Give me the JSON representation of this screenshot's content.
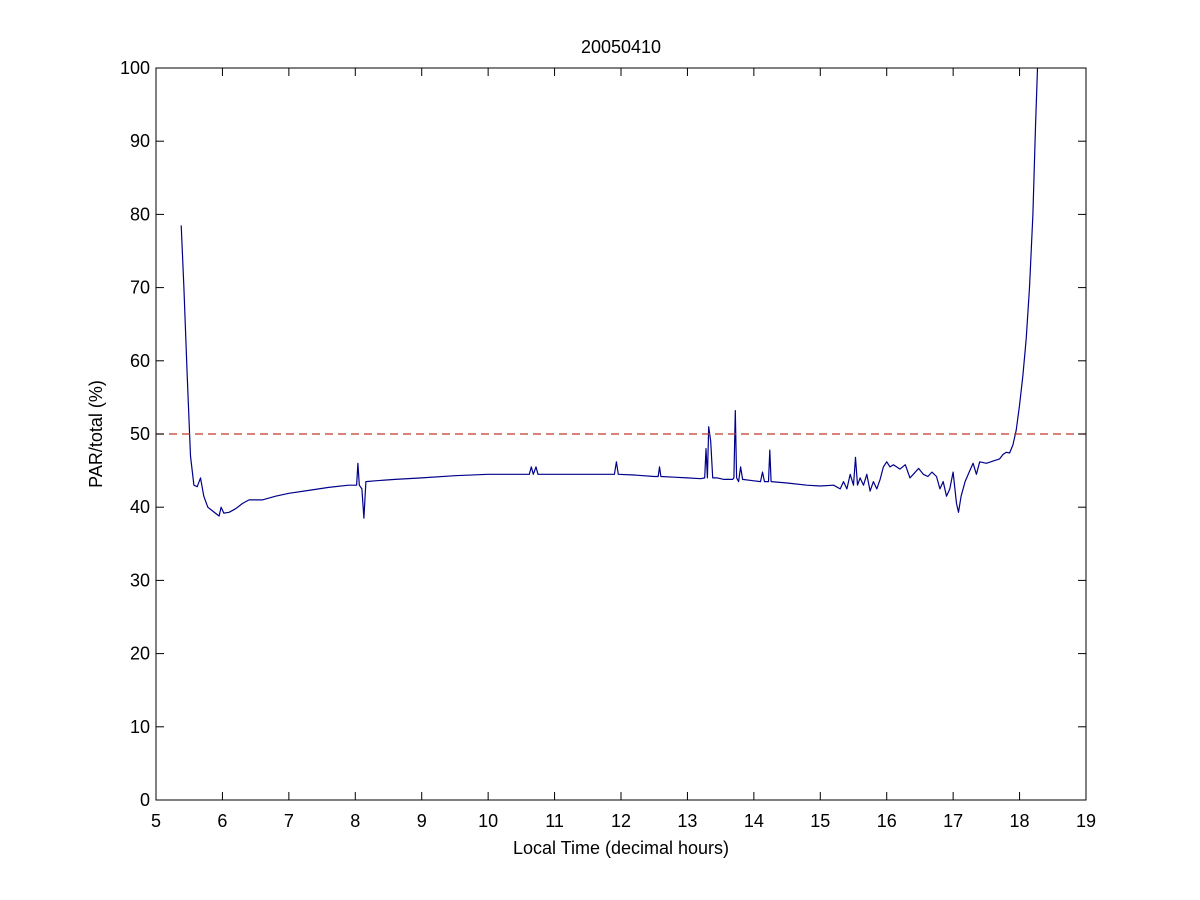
{
  "chart_data": {
    "type": "line",
    "title": "20050410",
    "xlabel": "Local Time (decimal hours)",
    "ylabel": "PAR/total (%)",
    "xlim": [
      5,
      19
    ],
    "ylim": [
      0,
      100
    ],
    "xticks": [
      5,
      6,
      7,
      8,
      9,
      10,
      11,
      12,
      13,
      14,
      15,
      16,
      17,
      18,
      19
    ],
    "yticks": [
      0,
      10,
      20,
      30,
      40,
      50,
      60,
      70,
      80,
      90,
      100
    ],
    "grid": false,
    "series": [
      {
        "color": "#00008b",
        "style": "solid",
        "points": [
          [
            5.38,
            78.5
          ],
          [
            5.42,
            70
          ],
          [
            5.47,
            58
          ],
          [
            5.52,
            47
          ],
          [
            5.57,
            43
          ],
          [
            5.62,
            42.8
          ],
          [
            5.67,
            44
          ],
          [
            5.72,
            41.5
          ],
          [
            5.78,
            40
          ],
          [
            5.85,
            39.5
          ],
          [
            5.92,
            39
          ],
          [
            5.95,
            38.8
          ],
          [
            5.98,
            40
          ],
          [
            6.02,
            39.2
          ],
          [
            6.1,
            39.3
          ],
          [
            6.2,
            39.8
          ],
          [
            6.3,
            40.5
          ],
          [
            6.4,
            41
          ],
          [
            6.6,
            41
          ],
          [
            6.8,
            41.5
          ],
          [
            7.0,
            41.9
          ],
          [
            7.3,
            42.3
          ],
          [
            7.6,
            42.7
          ],
          [
            7.9,
            43.0
          ],
          [
            8.02,
            43
          ],
          [
            8.04,
            46
          ],
          [
            8.06,
            43
          ],
          [
            8.1,
            42.5
          ],
          [
            8.13,
            38.5
          ],
          [
            8.16,
            43.5
          ],
          [
            8.3,
            43.6
          ],
          [
            8.6,
            43.8
          ],
          [
            9.0,
            44.0
          ],
          [
            9.5,
            44.3
          ],
          [
            10.0,
            44.5
          ],
          [
            10.5,
            44.5
          ],
          [
            10.62,
            44.5
          ],
          [
            10.65,
            45.5
          ],
          [
            10.68,
            44.5
          ],
          [
            10.72,
            45.5
          ],
          [
            10.75,
            44.5
          ],
          [
            11.0,
            44.5
          ],
          [
            11.5,
            44.5
          ],
          [
            11.9,
            44.5
          ],
          [
            11.93,
            46.2
          ],
          [
            11.96,
            44.5
          ],
          [
            12.2,
            44.4
          ],
          [
            12.5,
            44.2
          ],
          [
            12.56,
            44.2
          ],
          [
            12.58,
            45.5
          ],
          [
            12.6,
            44.2
          ],
          [
            12.8,
            44.1
          ],
          [
            13.0,
            44.0
          ],
          [
            13.2,
            43.9
          ],
          [
            13.26,
            44
          ],
          [
            13.28,
            48
          ],
          [
            13.3,
            44
          ],
          [
            13.32,
            51
          ],
          [
            13.35,
            49
          ],
          [
            13.38,
            44
          ],
          [
            13.45,
            44
          ],
          [
            13.55,
            43.8
          ],
          [
            13.68,
            43.8
          ],
          [
            13.7,
            44
          ],
          [
            13.72,
            53.2
          ],
          [
            13.74,
            44
          ],
          [
            13.77,
            43.5
          ],
          [
            13.8,
            45.5
          ],
          [
            13.83,
            43.8
          ],
          [
            14.0,
            43.6
          ],
          [
            14.1,
            43.5
          ],
          [
            14.13,
            44.8
          ],
          [
            14.16,
            43.5
          ],
          [
            14.22,
            43.5
          ],
          [
            14.24,
            47.8
          ],
          [
            14.26,
            43.5
          ],
          [
            14.5,
            43.3
          ],
          [
            14.8,
            43.0
          ],
          [
            15.0,
            42.9
          ],
          [
            15.2,
            43.0
          ],
          [
            15.3,
            42.5
          ],
          [
            15.35,
            43.5
          ],
          [
            15.4,
            42.5
          ],
          [
            15.45,
            44.5
          ],
          [
            15.5,
            43
          ],
          [
            15.53,
            46.8
          ],
          [
            15.56,
            43
          ],
          [
            15.6,
            44
          ],
          [
            15.65,
            43
          ],
          [
            15.7,
            44.5
          ],
          [
            15.75,
            42.2
          ],
          [
            15.8,
            43.5
          ],
          [
            15.85,
            42.5
          ],
          [
            15.9,
            43.8
          ],
          [
            15.95,
            45.5
          ],
          [
            16.0,
            46.2
          ],
          [
            16.05,
            45.5
          ],
          [
            16.1,
            45.8
          ],
          [
            16.2,
            45.2
          ],
          [
            16.28,
            45.8
          ],
          [
            16.35,
            44
          ],
          [
            16.4,
            44.5
          ],
          [
            16.48,
            45.3
          ],
          [
            16.55,
            44.5
          ],
          [
            16.62,
            44.2
          ],
          [
            16.68,
            44.8
          ],
          [
            16.75,
            44.2
          ],
          [
            16.8,
            42.5
          ],
          [
            16.85,
            43.5
          ],
          [
            16.9,
            41.5
          ],
          [
            16.95,
            42.5
          ],
          [
            17.0,
            44.8
          ],
          [
            17.05,
            40.5
          ],
          [
            17.08,
            39.3
          ],
          [
            17.12,
            41.5
          ],
          [
            17.18,
            43.5
          ],
          [
            17.25,
            45
          ],
          [
            17.3,
            46
          ],
          [
            17.35,
            44.5
          ],
          [
            17.4,
            46.2
          ],
          [
            17.5,
            46
          ],
          [
            17.6,
            46.3
          ],
          [
            17.7,
            46.6
          ],
          [
            17.75,
            47.2
          ],
          [
            17.8,
            47.5
          ],
          [
            17.85,
            47.4
          ],
          [
            17.9,
            48.5
          ],
          [
            17.95,
            50.5
          ],
          [
            18.0,
            54
          ],
          [
            18.05,
            58
          ],
          [
            18.1,
            63
          ],
          [
            18.15,
            70
          ],
          [
            18.2,
            80
          ],
          [
            18.24,
            92
          ],
          [
            18.27,
            100
          ]
        ]
      },
      {
        "color": "#c0392b",
        "style": "dashed",
        "points": [
          [
            5,
            50
          ],
          [
            19,
            50
          ]
        ]
      }
    ]
  }
}
